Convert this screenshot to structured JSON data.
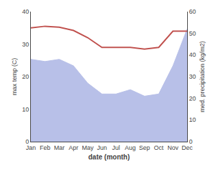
{
  "chart_data": {
    "type": "line",
    "categories": [
      "Jan",
      "Feb",
      "Mar",
      "Apr",
      "May",
      "Jun",
      "Jul",
      "Aug",
      "Sep",
      "Oct",
      "Nov",
      "Dec"
    ],
    "series": [
      {
        "type": "area",
        "axis": "y2",
        "color": "#b8c0e8",
        "values": [
          38,
          37,
          38,
          35,
          27,
          22,
          22,
          24,
          21,
          22,
          35,
          52
        ]
      },
      {
        "type": "line",
        "color": "#c0504d",
        "values": [
          35,
          35.5,
          35.2,
          34.2,
          32,
          29,
          29,
          29,
          28.5,
          29,
          34,
          34
        ]
      }
    ],
    "xlabel": "date (month)",
    "ylabel": "max temp (C)",
    "y2label": "med. precipitation (kg/m2)",
    "ylim": [
      0,
      40
    ],
    "yticks": [
      0,
      10,
      20,
      30,
      40
    ],
    "y2lim": [
      0,
      60
    ],
    "y2ticks": [
      0,
      10,
      20,
      30,
      40,
      50,
      60
    ],
    "grid": false
  }
}
